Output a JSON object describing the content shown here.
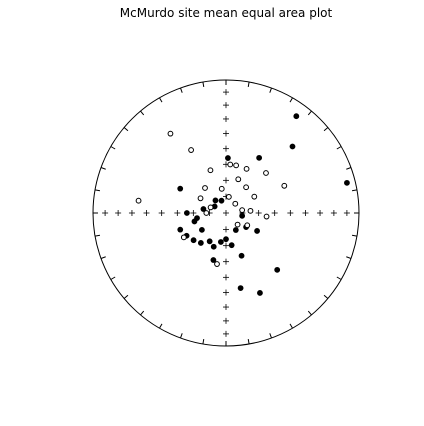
{
  "chart_data": {
    "type": "scatter",
    "projection": "equal-area stereonet",
    "title": "McMurdo site mean equal area plot",
    "xlabel": "",
    "ylabel": "",
    "grid": false,
    "legend": "none",
    "axis_tick_spacing_deg": 10,
    "colors": {
      "frame": "#000000",
      "lower_hemisphere": "#000000",
      "upper_hemisphere": "#ffffff"
    },
    "series": [
      {
        "name": "lower hemisphere (filled)",
        "marker": "filled-circle",
        "points": [
          {
            "dec": 36,
            "inc": 11
          },
          {
            "dec": 45,
            "inc": 30
          },
          {
            "dec": 2,
            "inc": 56
          },
          {
            "dec": 31,
            "inc": 50
          },
          {
            "dec": 76,
            "inc": -7
          },
          {
            "dec": 138,
            "inc": 42
          },
          {
            "dec": 157,
            "inc": 35
          },
          {
            "dec": 169,
            "inc": 42
          },
          {
            "dec": 298,
            "inc": 58
          },
          {
            "dec": 100,
            "inc": 80
          },
          {
            "dec": 125,
            "inc": 75
          },
          {
            "dec": 150,
            "inc": 78
          },
          {
            "dec": 170,
            "inc": 70
          },
          {
            "dec": 180,
            "inc": 74
          },
          {
            "dec": 190,
            "inc": 72
          },
          {
            "dec": 200,
            "inc": 68
          },
          {
            "dec": 210,
            "inc": 70
          },
          {
            "dec": 220,
            "inc": 66
          },
          {
            "dec": 230,
            "inc": 64
          },
          {
            "dec": 240,
            "inc": 62
          },
          {
            "dec": 250,
            "inc": 60
          },
          {
            "dec": 260,
            "inc": 72
          },
          {
            "dec": 270,
            "inc": 66
          },
          {
            "dec": 280,
            "inc": 76
          },
          {
            "dec": 300,
            "inc": 82
          },
          {
            "dec": 320,
            "inc": 80
          },
          {
            "dec": 340,
            "inc": 82
          },
          {
            "dec": 160,
            "inc": 62
          },
          {
            "dec": 195,
            "inc": 60
          },
          {
            "dec": 235,
            "inc": 72
          },
          {
            "dec": 255,
            "inc": 70
          },
          {
            "dec": 120,
            "inc": 68
          }
        ]
      },
      {
        "name": "upper hemisphere (open)",
        "marker": "open-circle",
        "points": [
          {
            "dec": 325,
            "inc": -28
          },
          {
            "dec": 331,
            "inc": -45
          },
          {
            "dec": 278,
            "inc": -34
          },
          {
            "dec": 5,
            "inc": -60
          },
          {
            "dec": 12,
            "inc": -60
          },
          {
            "dec": 25,
            "inc": -60
          },
          {
            "dec": 38,
            "inc": -70
          },
          {
            "dec": 60,
            "inc": -70
          },
          {
            "dec": 65,
            "inc": -50
          },
          {
            "dec": 95,
            "inc": -65
          },
          {
            "dec": 80,
            "inc": -80
          },
          {
            "dec": 240,
            "inc": -60
          },
          {
            "dec": 190,
            "inc": -58
          },
          {
            "dec": 10,
            "inc": -80
          },
          {
            "dec": 350,
            "inc": -75
          },
          {
            "dec": 320,
            "inc": -70
          },
          {
            "dec": 300,
            "inc": -72
          },
          {
            "dec": 270,
            "inc": -78
          },
          {
            "dec": 45,
            "inc": -82
          },
          {
            "dec": 120,
            "inc": -75
          },
          {
            "dec": 135,
            "inc": -80
          },
          {
            "dec": 290,
            "inc": -80
          },
          {
            "dec": 20,
            "inc": -68
          },
          {
            "dec": 340,
            "inc": -62
          },
          {
            "dec": 45,
            "inc": -55
          },
          {
            "dec": 85,
            "inc": -75
          }
        ]
      }
    ]
  }
}
